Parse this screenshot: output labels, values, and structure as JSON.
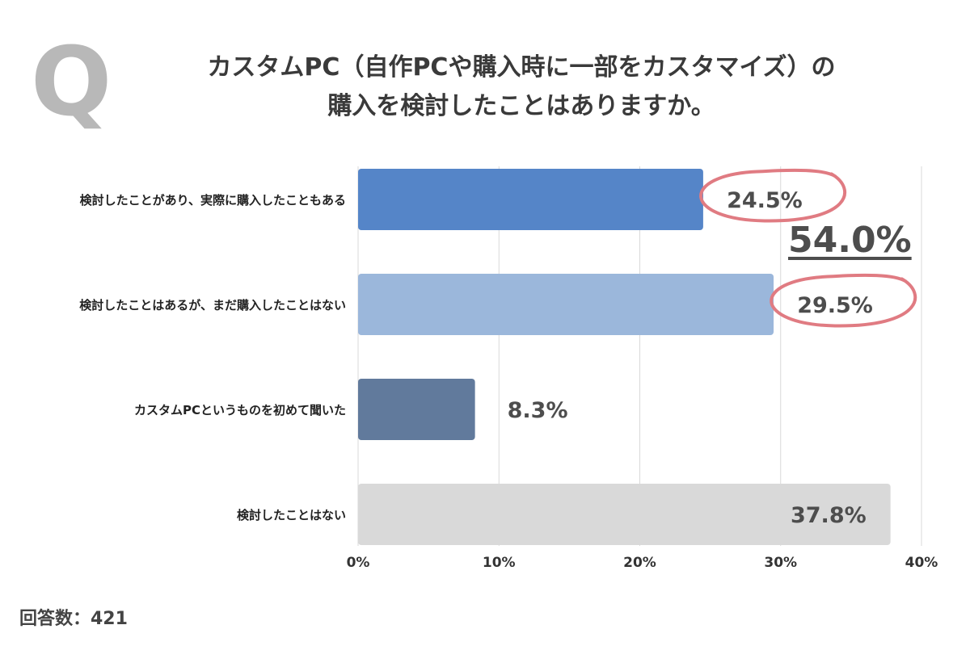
{
  "q_mark": "Q",
  "title_lines": [
    "カスタムPC（自作PCや購入時に一部をカスタマイズ）の",
    "購入を検討したことはありますか。"
  ],
  "total_highlight": "54.0%",
  "response_count_label": "回答数：421",
  "colors": {
    "bar1": "#5585c8",
    "bar2": "#9bb7db",
    "bar3": "#617a9c",
    "bar4": "#d9d9d9",
    "circle": "#e07b82",
    "grid": "#d9d9d9"
  },
  "chart_data": {
    "type": "bar",
    "orientation": "horizontal",
    "categories": [
      "検討したことがあり、実際に購入したこともある",
      "検討したことはあるが、まだ購入したことはない",
      "カスタムPCというものを初めて聞いた",
      "検討したことはない"
    ],
    "values": [
      24.5,
      29.5,
      8.3,
      37.8
    ],
    "value_labels": [
      "24.5%",
      "29.5%",
      "8.3%",
      "37.8%"
    ],
    "xlim": [
      0,
      40
    ],
    "x_ticks": [
      0,
      10,
      20,
      30,
      40
    ],
    "x_tick_labels": [
      "0%",
      "10%",
      "20%",
      "30%",
      "40%"
    ],
    "grid": true,
    "circled_labels": [
      0,
      1
    ]
  }
}
